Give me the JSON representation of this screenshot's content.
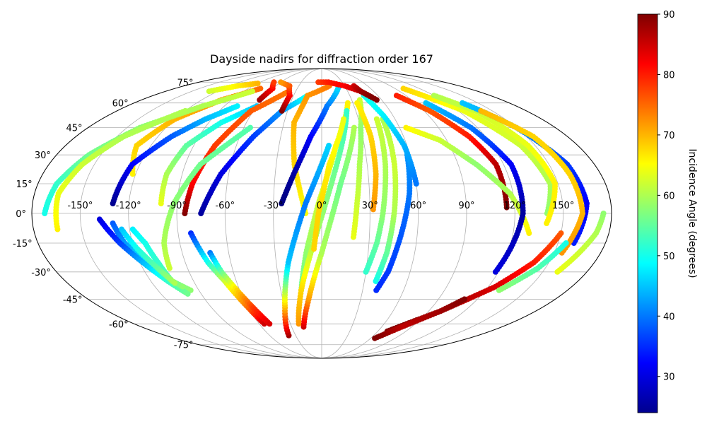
{
  "chart_data": {
    "type": "scatter",
    "projection": "mollweide",
    "title": "Dayside nadirs for diffraction order 167",
    "grid": true,
    "longitude_ticks": [
      {
        "value": -150,
        "label": "-150°"
      },
      {
        "value": -120,
        "label": "-120°"
      },
      {
        "value": -90,
        "label": "-90°"
      },
      {
        "value": -60,
        "label": "-60°"
      },
      {
        "value": -30,
        "label": "-30°"
      },
      {
        "value": 0,
        "label": "0°"
      },
      {
        "value": 30,
        "label": "30°"
      },
      {
        "value": 60,
        "label": "60°"
      },
      {
        "value": 90,
        "label": "90°"
      },
      {
        "value": 120,
        "label": "120°"
      },
      {
        "value": 150,
        "label": "150°"
      }
    ],
    "latitude_ticks": [
      {
        "value": 75,
        "label": "75°"
      },
      {
        "value": 60,
        "label": "60°"
      },
      {
        "value": 45,
        "label": "45°"
      },
      {
        "value": 30,
        "label": "30°"
      },
      {
        "value": 15,
        "label": "15°"
      },
      {
        "value": 0,
        "label": "0°"
      },
      {
        "value": -15,
        "label": "-15°"
      },
      {
        "value": -30,
        "label": "-30°"
      },
      {
        "value": -45,
        "label": "-45°"
      },
      {
        "value": -60,
        "label": "-60°"
      },
      {
        "value": -75,
        "label": "-75°"
      }
    ],
    "colorbar": {
      "label": "Incidence Angle (degrees)",
      "colormap": "jet",
      "range": [
        24,
        90
      ],
      "ticks": [
        {
          "value": 30,
          "label": "30"
        },
        {
          "value": 40,
          "label": "40"
        },
        {
          "value": 50,
          "label": "50"
        },
        {
          "value": 60,
          "label": "60"
        },
        {
          "value": 70,
          "label": "70"
        },
        {
          "value": 80,
          "label": "80"
        },
        {
          "value": 90,
          "label": "90"
        }
      ]
    },
    "tracks": [
      {
        "points": [
          [
            -122,
            20,
            66
          ],
          [
            -130,
            35,
            68
          ],
          [
            -120,
            50,
            70
          ],
          [
            -100,
            62,
            72
          ],
          [
            -75,
            70,
            75
          ]
        ]
      },
      {
        "points": [
          [
            -130,
            5,
            25
          ],
          [
            -125,
            25,
            32
          ],
          [
            -110,
            40,
            38
          ],
          [
            -95,
            50,
            44
          ],
          [
            -78,
            58,
            48
          ]
        ]
      },
      {
        "points": [
          [
            -130,
            -5,
            38
          ],
          [
            -125,
            -15,
            42
          ],
          [
            -115,
            -25,
            48
          ],
          [
            -105,
            -35,
            55
          ],
          [
            -96,
            -40,
            58
          ]
        ]
      },
      {
        "points": [
          [
            -138,
            -3,
            30
          ],
          [
            -128,
            -15,
            36
          ],
          [
            -118,
            -25,
            44
          ],
          [
            -108,
            -35,
            52
          ],
          [
            -100,
            -42,
            56
          ]
        ]
      },
      {
        "points": [
          [
            -100,
            5,
            64
          ],
          [
            -100,
            20,
            60
          ],
          [
            -95,
            35,
            55
          ],
          [
            -80,
            48,
            50
          ],
          [
            -60,
            58,
            45
          ]
        ]
      },
      {
        "points": [
          [
            -118,
            -8,
            48
          ],
          [
            -112,
            -15,
            50
          ],
          [
            -108,
            -25,
            52
          ],
          [
            -105,
            -35,
            55
          ],
          [
            -100,
            -38,
            58
          ]
        ]
      },
      {
        "points": [
          [
            -125,
            -8,
            45
          ],
          [
            -118,
            -18,
            50
          ],
          [
            -110,
            -28,
            55
          ],
          [
            -104,
            -36,
            60
          ]
        ]
      },
      {
        "points": [
          [
            -85,
            0,
            90
          ],
          [
            -82,
            15,
            82
          ],
          [
            -75,
            35,
            78
          ],
          [
            -62,
            55,
            76
          ],
          [
            -38,
            68,
            74
          ]
        ]
      },
      {
        "points": [
          [
            -82,
            -10,
            35
          ],
          [
            -75,
            -25,
            50
          ],
          [
            -68,
            -35,
            62
          ],
          [
            -60,
            -50,
            75
          ],
          [
            -55,
            -60,
            85
          ]
        ]
      },
      {
        "points": [
          [
            -75,
            0,
            26
          ],
          [
            -65,
            20,
            30
          ],
          [
            -50,
            40,
            36
          ],
          [
            -35,
            55,
            42
          ],
          [
            -15,
            65,
            50
          ]
        ]
      },
      {
        "points": [
          [
            -102,
            -28,
            62
          ],
          [
            -100,
            -15,
            60
          ],
          [
            -92,
            5,
            58
          ],
          [
            -80,
            25,
            56
          ],
          [
            -55,
            45,
            54
          ]
        ]
      },
      {
        "points": [
          [
            -72,
            -20,
            40
          ],
          [
            -68,
            -30,
            55
          ],
          [
            -62,
            -40,
            68
          ],
          [
            -56,
            -50,
            78
          ],
          [
            -50,
            -60,
            84
          ]
        ]
      },
      {
        "points": [
          [
            -35,
            55,
            90
          ],
          [
            -34,
            65,
            82
          ],
          [
            -42,
            72,
            76
          ],
          [
            -60,
            75,
            72
          ]
        ]
      },
      {
        "points": [
          [
            -62,
            62,
            88
          ],
          [
            -60,
            70,
            82
          ],
          [
            -70,
            75,
            78
          ]
        ]
      },
      {
        "points": [
          [
            -10,
            0,
            65
          ],
          [
            -18,
            25,
            68
          ],
          [
            -22,
            48,
            70
          ],
          [
            -15,
            65,
            72
          ],
          [
            10,
            72,
            74
          ]
        ]
      },
      {
        "points": [
          [
            -25,
            5,
            24
          ],
          [
            -18,
            20,
            26
          ],
          [
            -8,
            40,
            32
          ],
          [
            5,
            58,
            40
          ],
          [
            20,
            70,
            46
          ]
        ]
      },
      {
        "points": [
          [
            -15,
            -40,
            55
          ],
          [
            -10,
            -20,
            58
          ],
          [
            -2,
            5,
            62
          ],
          [
            10,
            35,
            64
          ],
          [
            25,
            60,
            66
          ]
        ]
      },
      {
        "points": [
          [
            -22,
            -60,
            72
          ],
          [
            -15,
            -40,
            68
          ],
          [
            -5,
            -15,
            60
          ],
          [
            8,
            20,
            56
          ],
          [
            22,
            55,
            52
          ]
        ]
      },
      {
        "points": [
          [
            -38,
            -68,
            88
          ],
          [
            -30,
            -50,
            70
          ],
          [
            -22,
            -25,
            45
          ],
          [
            -10,
            5,
            40
          ],
          [
            5,
            35,
            46
          ]
        ]
      },
      {
        "points": [
          [
            -18,
            -62,
            85
          ],
          [
            -10,
            -45,
            72
          ],
          [
            0,
            -20,
            60
          ],
          [
            12,
            15,
            56
          ],
          [
            25,
            45,
            60
          ]
        ]
      },
      {
        "points": [
          [
            -5,
            -18,
            68
          ],
          [
            -2,
            0,
            68
          ],
          [
            5,
            25,
            66
          ],
          [
            18,
            50,
            64
          ]
        ]
      },
      {
        "points": [
          [
            20,
            -12,
            64
          ],
          [
            22,
            5,
            62
          ],
          [
            25,
            25,
            60
          ],
          [
            30,
            45,
            58
          ],
          [
            38,
            62,
            62
          ]
        ]
      },
      {
        "points": [
          [
            30,
            -30,
            52
          ],
          [
            35,
            -15,
            55
          ],
          [
            38,
            0,
            58
          ],
          [
            42,
            25,
            60
          ],
          [
            45,
            50,
            62
          ]
        ]
      },
      {
        "points": [
          [
            38,
            -35,
            50
          ],
          [
            42,
            -20,
            55
          ],
          [
            45,
            0,
            60
          ],
          [
            48,
            25,
            62
          ],
          [
            50,
            50,
            60
          ]
        ]
      },
      {
        "points": [
          [
            32,
            2,
            72
          ],
          [
            35,
            20,
            70
          ],
          [
            36,
            40,
            68
          ],
          [
            34,
            60,
            66
          ]
        ]
      },
      {
        "points": [
          [
            58,
            30,
            42
          ],
          [
            55,
            10,
            40
          ],
          [
            50,
            -10,
            38
          ],
          [
            45,
            -30,
            36
          ],
          [
            40,
            -40,
            35
          ]
        ]
      },
      {
        "points": [
          [
            45,
            65,
            50
          ],
          [
            52,
            52,
            48
          ],
          [
            58,
            35,
            44
          ],
          [
            60,
            15,
            40
          ]
        ]
      },
      {
        "points": [
          [
            -5,
            75,
            78
          ],
          [
            10,
            75,
            80
          ],
          [
            30,
            72,
            82
          ],
          [
            45,
            68,
            86
          ],
          [
            55,
            62,
            90
          ]
        ]
      },
      {
        "points": [
          [
            42,
            72,
            85
          ],
          [
            45,
            68,
            88
          ],
          [
            52,
            64,
            90
          ]
        ]
      },
      {
        "points": [
          [
            80,
            65,
            80
          ],
          [
            95,
            55,
            76
          ],
          [
            108,
            40,
            80
          ],
          [
            115,
            25,
            86
          ],
          [
            115,
            3,
            90
          ]
        ]
      },
      {
        "points": [
          [
            65,
            45,
            66
          ],
          [
            85,
            38,
            62
          ],
          [
            102,
            25,
            58
          ],
          [
            118,
            10,
            60
          ],
          [
            130,
            -10,
            66
          ]
        ]
      },
      {
        "points": [
          [
            100,
            60,
            45
          ],
          [
            115,
            45,
            40
          ],
          [
            125,
            25,
            32
          ],
          [
            125,
            0,
            26
          ],
          [
            118,
            -30,
            30
          ]
        ]
      },
      {
        "points": [
          [
            100,
            70,
            68
          ],
          [
            125,
            55,
            64
          ],
          [
            140,
            35,
            62
          ],
          [
            145,
            15,
            60
          ],
          [
            140,
            0,
            58
          ]
        ]
      },
      {
        "points": [
          [
            120,
            65,
            60
          ],
          [
            135,
            55,
            62
          ],
          [
            145,
            35,
            64
          ],
          [
            148,
            15,
            66
          ],
          [
            140,
            -5,
            66
          ]
        ]
      },
      {
        "points": [
          [
            135,
            60,
            45
          ],
          [
            150,
            45,
            42
          ],
          [
            162,
            25,
            36
          ],
          [
            165,
            5,
            32
          ],
          [
            160,
            -15,
            34
          ]
        ]
      },
      {
        "points": [
          [
            140,
            55,
            70
          ],
          [
            155,
            40,
            68
          ],
          [
            160,
            20,
            68
          ],
          [
            162,
            0,
            70
          ],
          [
            155,
            -20,
            72
          ]
        ]
      },
      {
        "points": [
          [
            150,
            -10,
            76
          ],
          [
            140,
            -25,
            80
          ],
          [
            125,
            -38,
            84
          ],
          [
            100,
            -52,
            88
          ],
          [
            70,
            -65,
            90
          ]
        ]
      },
      {
        "points": [
          [
            155,
            -15,
            50
          ],
          [
            145,
            -28,
            54
          ],
          [
            130,
            -40,
            58
          ]
        ]
      },
      {
        "points": [
          [
            175,
            0,
            58
          ],
          [
            172,
            -10,
            60
          ],
          [
            166,
            -20,
            62
          ],
          [
            160,
            -30,
            64
          ]
        ]
      },
      {
        "points": [
          [
            110,
            -45,
            90
          ],
          [
            100,
            -52,
            88
          ],
          [
            80,
            -62,
            86
          ],
          [
            65,
            -70,
            90
          ]
        ]
      },
      {
        "points": [
          [
            -172,
            0,
            50
          ],
          [
            -168,
            15,
            52
          ],
          [
            -158,
            30,
            56
          ],
          [
            -140,
            45,
            58
          ],
          [
            -110,
            58,
            60
          ],
          [
            -80,
            68,
            62
          ]
        ]
      },
      {
        "points": [
          [
            -165,
            -8,
            66
          ],
          [
            -165,
            10,
            64
          ],
          [
            -158,
            25,
            62
          ],
          [
            -145,
            40,
            60
          ],
          [
            -120,
            55,
            60
          ]
        ]
      },
      {
        "points": [
          [
            -130,
            68,
            62
          ],
          [
            -110,
            72,
            66
          ],
          [
            -90,
            74,
            70
          ]
        ]
      }
    ]
  }
}
